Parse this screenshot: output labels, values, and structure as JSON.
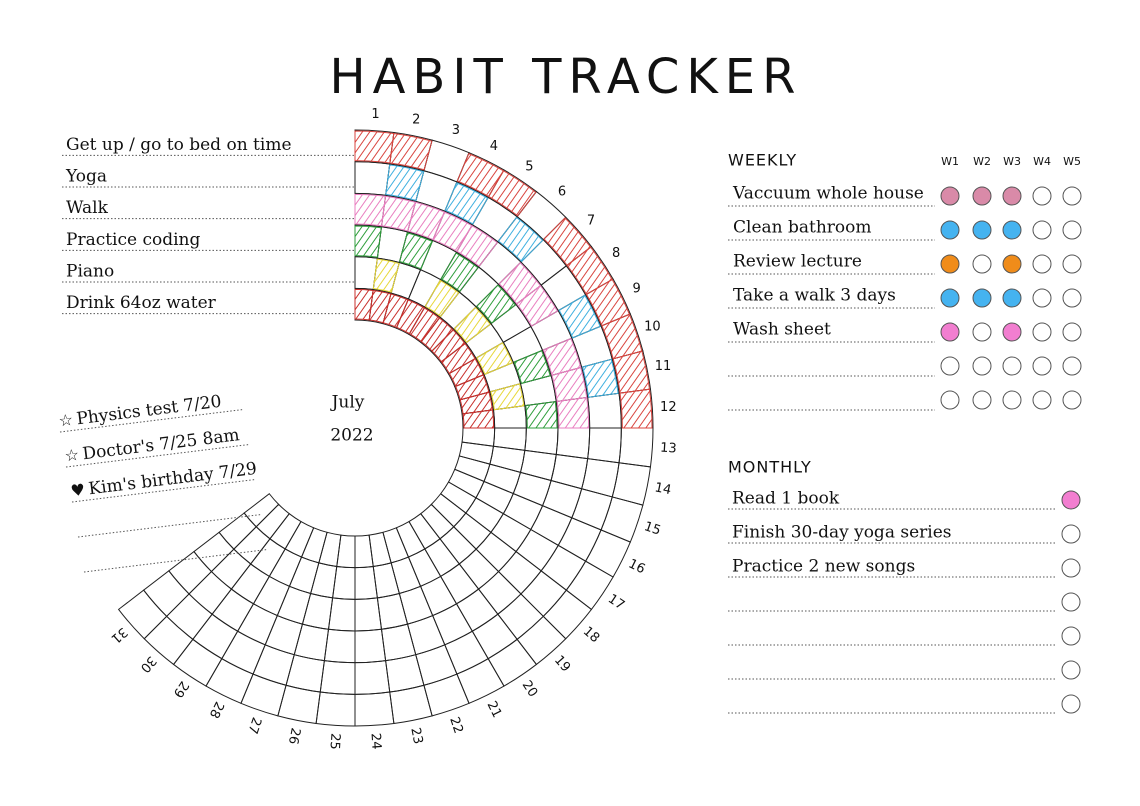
{
  "title": "HABIT TRACKER",
  "tracker": {
    "month": "July",
    "year": "2022",
    "days": [
      1,
      2,
      3,
      4,
      5,
      6,
      7,
      8,
      9,
      10,
      11,
      12,
      13,
      14,
      15,
      16,
      17,
      18,
      19,
      20,
      21,
      22,
      23,
      24,
      25,
      26,
      27,
      28,
      29,
      30,
      31
    ],
    "habits": [
      {
        "label": "Get up / go to bed on time",
        "color": "#d9453f",
        "done": [
          1,
          2,
          4,
          5,
          7,
          8,
          9,
          10,
          11,
          12
        ]
      },
      {
        "label": "Yoga",
        "color": "#3fb0e0",
        "done": [
          2,
          4,
          6,
          9,
          11
        ]
      },
      {
        "label": "Walk",
        "color": "#e97fc0",
        "done": [
          1,
          2,
          3,
          4,
          5,
          7,
          8,
          10,
          11,
          12
        ]
      },
      {
        "label": "Practice coding",
        "color": "#2f9e3c",
        "done": [
          1,
          3,
          5,
          7,
          10,
          12
        ]
      },
      {
        "label": "Piano",
        "color": "#e8d83a",
        "done": [
          2,
          5,
          7,
          9,
          11
        ]
      },
      {
        "label": "Drink 64oz water",
        "color": "#c9302c",
        "done": [
          1,
          2,
          3,
          4,
          5,
          6,
          7,
          8,
          9,
          10,
          11,
          12
        ]
      }
    ]
  },
  "notes": [
    {
      "icon": "☆",
      "text": "Physics test 7/20"
    },
    {
      "icon": "☆",
      "text": "Doctor's 7/25 8am"
    },
    {
      "icon": "♥",
      "text": "Kim's birthday 7/29"
    }
  ],
  "weekly": {
    "header": "WEEKLY",
    "weeks": [
      "W1",
      "W2",
      "W3",
      "W4",
      "W5"
    ],
    "tasks": [
      {
        "label": "Vaccuum whole house",
        "checks": [
          "#d98aa8",
          "#d98aa8",
          "#d98aa8",
          null,
          null
        ]
      },
      {
        "label": "Clean bathroom",
        "checks": [
          "#45b3f0",
          "#45b3f0",
          "#45b3f0",
          null,
          null
        ]
      },
      {
        "label": "Review lecture",
        "checks": [
          "#f08c1a",
          null,
          "#f08c1a",
          null,
          null
        ]
      },
      {
        "label": "Take a walk 3 days",
        "checks": [
          "#45b3f0",
          "#45b3f0",
          "#45b3f0",
          null,
          null
        ]
      },
      {
        "label": "Wash sheet",
        "checks": [
          "#f27ed0",
          null,
          "#f27ed0",
          null,
          null
        ]
      }
    ]
  },
  "monthly": {
    "header": "MONTHLY",
    "tasks": [
      {
        "label": "Read 1 book",
        "check": "#f27ed0"
      },
      {
        "label": "Finish 30-day yoga series",
        "check": null
      },
      {
        "label": "Practice 2 new songs",
        "check": null
      }
    ]
  }
}
